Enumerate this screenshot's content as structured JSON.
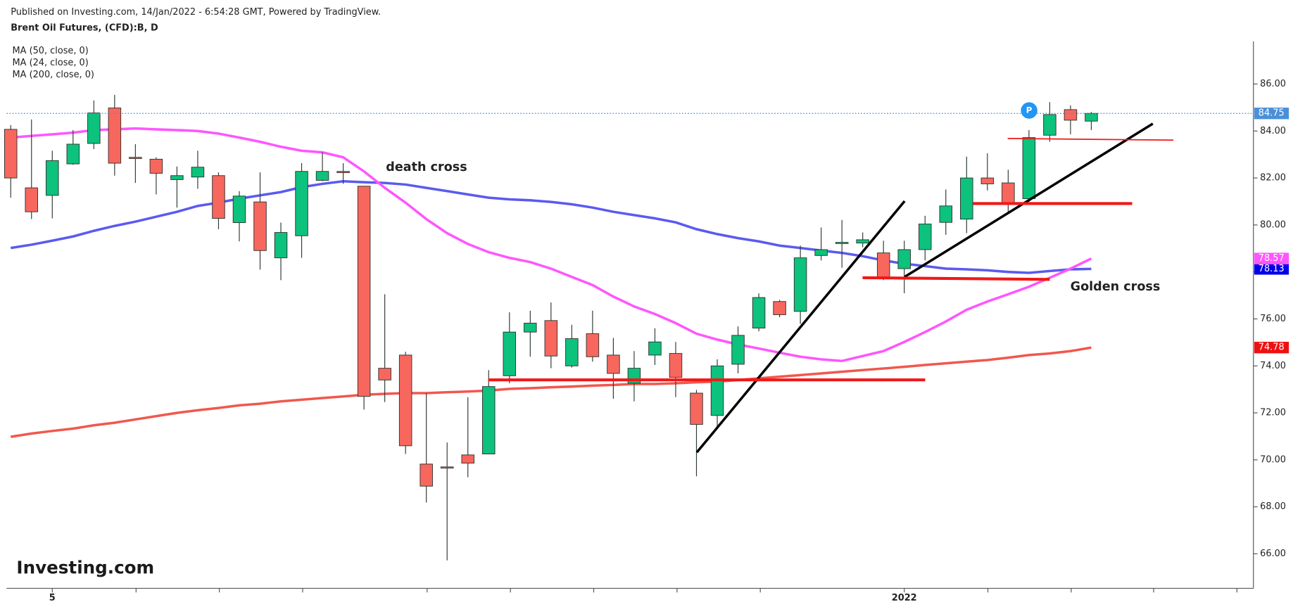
{
  "header": {
    "published": "Published on Investing.com, 14/Jan/2022 - 6:54:28 GMT, Powered by TradingView.",
    "logo": "Investing.com"
  },
  "chart_data": {
    "type": "candlestick",
    "title": "Brent Oil Futures, (CFD):B, D",
    "categories": [
      null,
      null,
      "5",
      null,
      null,
      null,
      null,
      null,
      null,
      null,
      null,
      null,
      null,
      null,
      null,
      null,
      null,
      null,
      null,
      null,
      null,
      null,
      null,
      null,
      null,
      null,
      null,
      null,
      null,
      null,
      null,
      null,
      null,
      null,
      null,
      null,
      null,
      null,
      null,
      null,
      null,
      null,
      null,
      "2022",
      null,
      null,
      null,
      null,
      null,
      null,
      null,
      null,
      null
    ],
    "open": [
      84.07,
      81.58,
      81.26,
      82.6,
      83.47,
      84.98,
      82.88,
      82.8,
      81.93,
      82.04,
      82.1,
      80.1,
      80.98,
      78.6,
      79.54,
      81.9,
      82.28,
      81.65,
      73.9,
      74.46,
      69.82,
      69.7,
      70.21,
      70.25,
      73.58,
      75.44,
      75.93,
      74.0,
      75.37,
      74.46,
      73.26,
      74.46,
      74.53,
      72.84,
      71.89,
      74.07,
      75.61,
      76.74,
      76.32,
      78.7,
      79.26,
      79.23,
      78.81,
      78.14,
      78.95,
      80.11,
      80.25,
      82.0,
      81.79,
      81.12,
      83.82,
      84.91,
      84.42
    ],
    "high": [
      84.25,
      84.49,
      83.16,
      84.04,
      85.3,
      85.54,
      83.44,
      82.88,
      82.49,
      83.16,
      82.24,
      81.44,
      82.24,
      80.1,
      82.63,
      83.1,
      82.63,
      81.65,
      77.05,
      74.6,
      72.84,
      70.74,
      72.67,
      73.82,
      76.28,
      76.35,
      76.7,
      75.75,
      76.35,
      75.19,
      74.63,
      75.6,
      75.02,
      72.98,
      74.28,
      75.68,
      77.09,
      76.81,
      79.12,
      79.89,
      80.21,
      79.68,
      79.33,
      79.33,
      80.39,
      81.51,
      82.91,
      83.05,
      82.35,
      84.04,
      85.23,
      85.09,
      84.81
    ],
    "low": [
      81.16,
      80.25,
      80.28,
      82.56,
      83.23,
      82.1,
      81.79,
      81.3,
      80.74,
      81.54,
      79.82,
      79.3,
      78.1,
      77.65,
      78.6,
      81.86,
      81.75,
      72.14,
      72.46,
      70.25,
      68.18,
      65.72,
      69.26,
      70.25,
      73.26,
      74.39,
      73.9,
      73.93,
      74.18,
      72.6,
      72.49,
      74.04,
      72.67,
      69.3,
      71.37,
      73.68,
      75.47,
      76.07,
      75.79,
      78.49,
      78.18,
      79.05,
      77.65,
      77.09,
      78.49,
      79.58,
      79.65,
      81.47,
      80.49,
      80.98,
      83.54,
      83.86,
      84.04
    ],
    "close": [
      82.0,
      80.56,
      82.74,
      83.44,
      84.77,
      82.63,
      82.85,
      82.2,
      82.1,
      82.46,
      80.28,
      81.23,
      78.91,
      79.68,
      82.28,
      82.28,
      82.24,
      72.7,
      73.4,
      70.6,
      68.88,
      69.68,
      69.86,
      73.12,
      75.44,
      75.82,
      74.42,
      75.16,
      74.39,
      73.68,
      73.9,
      75.02,
      73.51,
      71.51,
      74.0,
      75.3,
      76.91,
      76.18,
      78.6,
      78.95,
      79.26,
      79.37,
      77.72,
      78.95,
      80.04,
      80.81,
      82.0,
      81.75,
      80.95,
      83.72,
      84.7,
      84.46,
      84.75
    ],
    "up_color": "#0cc27c",
    "down_color": "#f7675d",
    "last_price_color": "#4a90d9",
    "overlays": [
      {
        "name": "MA (50, close, 0)",
        "color": "#5a5af0",
        "values": [
          79.02,
          79.16,
          79.33,
          79.51,
          79.75,
          79.96,
          80.14,
          80.35,
          80.56,
          80.81,
          80.95,
          81.12,
          81.26,
          81.4,
          81.61,
          81.75,
          81.86,
          81.82,
          81.79,
          81.72,
          81.58,
          81.44,
          81.3,
          81.16,
          81.09,
          81.05,
          80.98,
          80.88,
          80.74,
          80.56,
          80.42,
          80.28,
          80.11,
          79.82,
          79.61,
          79.44,
          79.3,
          79.12,
          79.02,
          78.91,
          78.81,
          78.67,
          78.49,
          78.35,
          78.25,
          78.14,
          78.11,
          78.07,
          78.0,
          77.96,
          78.04,
          78.11,
          78.13
        ]
      },
      {
        "name": "MA (24, close, 0)",
        "color": "#ff55ff",
        "values": [
          83.72,
          83.79,
          83.86,
          83.93,
          84.04,
          84.07,
          84.11,
          84.07,
          84.04,
          84.0,
          83.89,
          83.72,
          83.54,
          83.33,
          83.16,
          83.09,
          82.88,
          82.28,
          81.58,
          80.95,
          80.25,
          79.65,
          79.19,
          78.84,
          78.6,
          78.42,
          78.14,
          77.79,
          77.44,
          76.95,
          76.53,
          76.21,
          75.82,
          75.37,
          75.12,
          74.91,
          74.74,
          74.56,
          74.39,
          74.28,
          74.21,
          74.42,
          74.63,
          75.02,
          75.44,
          75.89,
          76.39,
          76.74,
          77.05,
          77.37,
          77.75,
          78.14,
          78.57
        ]
      },
      {
        "name": "MA (200, close, 0)",
        "color": "#f0584e",
        "values": [
          70.98,
          71.12,
          71.23,
          71.33,
          71.47,
          71.58,
          71.72,
          71.86,
          72.0,
          72.11,
          72.21,
          72.32,
          72.39,
          72.49,
          72.56,
          72.63,
          72.7,
          72.77,
          72.81,
          72.84,
          72.84,
          72.88,
          72.91,
          72.95,
          73.02,
          73.05,
          73.09,
          73.12,
          73.16,
          73.19,
          73.23,
          73.23,
          73.26,
          73.3,
          73.33,
          73.4,
          73.47,
          73.54,
          73.61,
          73.68,
          73.75,
          73.82,
          73.89,
          73.96,
          74.04,
          74.11,
          74.18,
          74.25,
          74.35,
          74.46,
          74.53,
          74.63,
          74.78
        ]
      }
    ],
    "ylim": [
      64.53,
      87.82
    ],
    "yticks": [
      {
        "value": 66,
        "label": "66.00"
      },
      {
        "value": 68,
        "label": "68.00"
      },
      {
        "value": 70,
        "label": "70.00"
      },
      {
        "value": 72,
        "label": "72.00"
      },
      {
        "value": 74,
        "label": "74.00"
      },
      {
        "value": 76,
        "label": "76.00"
      },
      {
        "value": 78,
        "label": "78.00"
      },
      {
        "value": 80,
        "label": "80.00"
      },
      {
        "value": 82,
        "label": "82.00"
      },
      {
        "value": 84,
        "label": "84.00"
      },
      {
        "value": 86,
        "label": "86.00"
      }
    ],
    "annotations": [
      {
        "text": "death cross"
      },
      {
        "text": "Golden cross"
      },
      {
        "text": "P"
      }
    ]
  }
}
